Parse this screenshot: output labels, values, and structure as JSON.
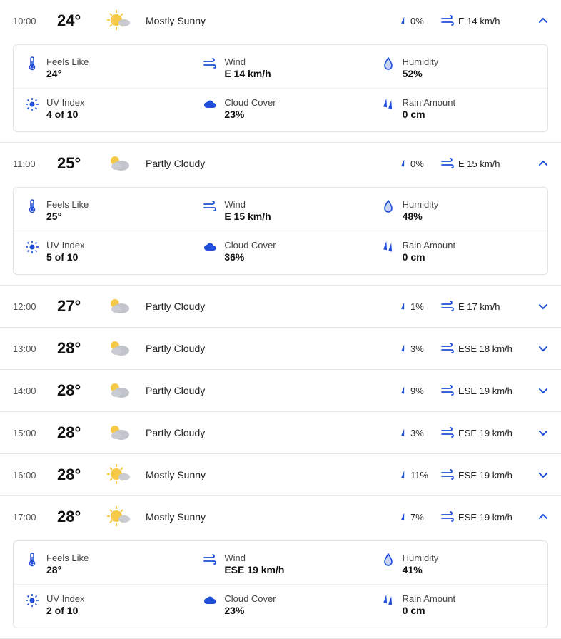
{
  "colors": {
    "accent": "#1f4fd8",
    "text": "#222",
    "border": "#e8e8e8"
  },
  "hours": [
    {
      "time": "10:00",
      "temp": "24°",
      "condition": "mostly-sunny",
      "desc": "Mostly Sunny",
      "precip": "0%",
      "wind": "E 14 km/h",
      "expanded": true,
      "details": {
        "feels_like_label": "Feels Like",
        "feels_like": "24°",
        "wind_label": "Wind",
        "wind": "E 14 km/h",
        "humidity_label": "Humidity",
        "humidity": "52%",
        "uv_label": "UV Index",
        "uv": "4 of 10",
        "cloud_label": "Cloud Cover",
        "cloud": "23%",
        "rain_label": "Rain Amount",
        "rain": "0 cm"
      }
    },
    {
      "time": "11:00",
      "temp": "25°",
      "condition": "partly-cloudy",
      "desc": "Partly Cloudy",
      "precip": "0%",
      "wind": "E 15 km/h",
      "expanded": true,
      "details": {
        "feels_like_label": "Feels Like",
        "feels_like": "25°",
        "wind_label": "Wind",
        "wind": "E 15 km/h",
        "humidity_label": "Humidity",
        "humidity": "48%",
        "uv_label": "UV Index",
        "uv": "5 of 10",
        "cloud_label": "Cloud Cover",
        "cloud": "36%",
        "rain_label": "Rain Amount",
        "rain": "0 cm"
      }
    },
    {
      "time": "12:00",
      "temp": "27°",
      "condition": "partly-cloudy",
      "desc": "Partly Cloudy",
      "precip": "1%",
      "wind": "E 17 km/h",
      "expanded": false
    },
    {
      "time": "13:00",
      "temp": "28°",
      "condition": "partly-cloudy",
      "desc": "Partly Cloudy",
      "precip": "3%",
      "wind": "ESE 18 km/h",
      "expanded": false
    },
    {
      "time": "14:00",
      "temp": "28°",
      "condition": "partly-cloudy",
      "desc": "Partly Cloudy",
      "precip": "9%",
      "wind": "ESE 19 km/h",
      "expanded": false
    },
    {
      "time": "15:00",
      "temp": "28°",
      "condition": "partly-cloudy",
      "desc": "Partly Cloudy",
      "precip": "3%",
      "wind": "ESE 19 km/h",
      "expanded": false
    },
    {
      "time": "16:00",
      "temp": "28°",
      "condition": "mostly-sunny",
      "desc": "Mostly Sunny",
      "precip": "11%",
      "wind": "ESE 19 km/h",
      "expanded": false
    },
    {
      "time": "17:00",
      "temp": "28°",
      "condition": "mostly-sunny",
      "desc": "Mostly Sunny",
      "precip": "7%",
      "wind": "ESE 19 km/h",
      "expanded": true,
      "details": {
        "feels_like_label": "Feels Like",
        "feels_like": "28°",
        "wind_label": "Wind",
        "wind": "ESE 19 km/h",
        "humidity_label": "Humidity",
        "humidity": "41%",
        "uv_label": "UV Index",
        "uv": "2 of 10",
        "cloud_label": "Cloud Cover",
        "cloud": "23%",
        "rain_label": "Rain Amount",
        "rain": "0 cm"
      }
    }
  ]
}
